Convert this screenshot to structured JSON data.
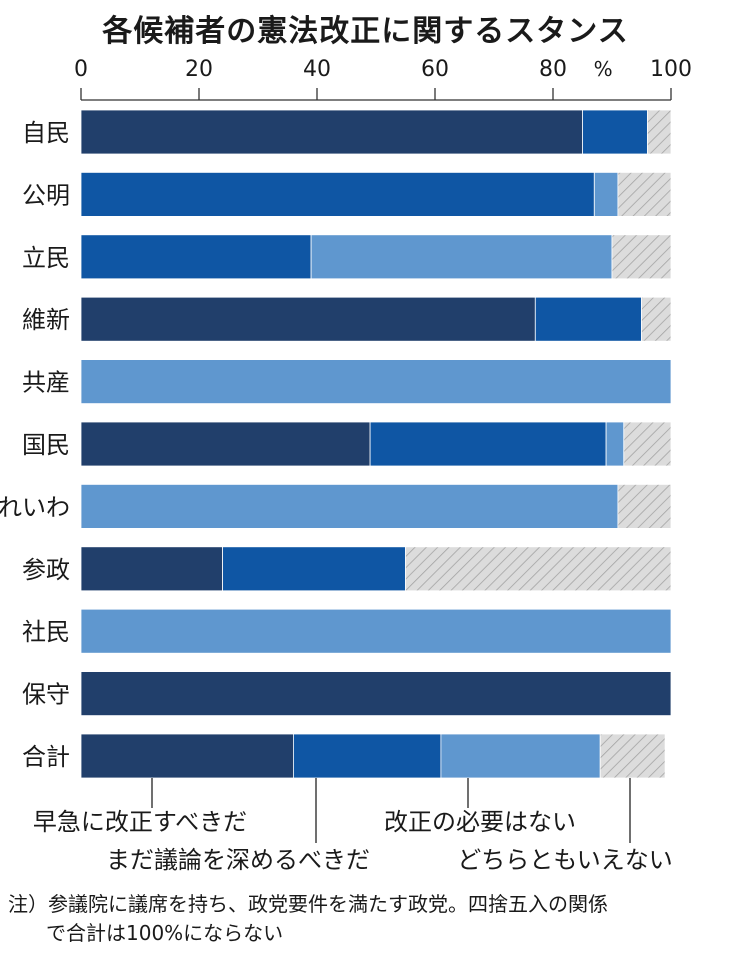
{
  "title": "各候補者の憲法改正に関するスタンス",
  "footnote": {
    "line1": "注）参議院に議席を持ち、政党要件を満たす政党。四捨五入の関係",
    "line2": "で合計は100%にならない"
  },
  "colors": {
    "immediate": "#213f6b",
    "deepen": "#0f56a4",
    "not_needed": "#5f97cf",
    "neither": "#d9d9d9",
    "neither_hatch": "#9a9a9a"
  },
  "chart_data": {
    "type": "bar",
    "orientation": "horizontal",
    "stacked": true,
    "title": "各候補者の憲法改正に関するスタンス",
    "unit_label": "%",
    "xlim": [
      0,
      100
    ],
    "xticks": [
      0,
      20,
      40,
      60,
      80,
      100
    ],
    "xtick_labels": [
      "0",
      "20",
      "40",
      "60",
      "80",
      "100"
    ],
    "grid": false,
    "categories": [
      "自民",
      "公明",
      "立民",
      "維新",
      "共産",
      "国民",
      "れいわ",
      "参政",
      "社民",
      "保守",
      "合計"
    ],
    "series": [
      {
        "name": "早急に改正すべきだ",
        "key": "immediate",
        "values": [
          85,
          0,
          0,
          77,
          0,
          49,
          0,
          24,
          0,
          100,
          36
        ]
      },
      {
        "name": "まだ議論を深めるべきだ",
        "key": "deepen",
        "values": [
          11,
          87,
          39,
          18,
          0,
          40,
          0,
          31,
          0,
          0,
          25
        ]
      },
      {
        "name": "改正の必要はない",
        "key": "not_needed",
        "values": [
          0,
          4,
          51,
          0,
          100,
          3,
          91,
          0,
          100,
          0,
          27
        ]
      },
      {
        "name": "どちらともいえない",
        "key": "neither",
        "values": [
          4,
          9,
          10,
          5,
          0,
          8,
          9,
          45,
          0,
          0,
          11
        ]
      }
    ],
    "legend": {
      "placement": "bottom",
      "row1": [
        "早急に改正すべきだ",
        "改正の必要はない"
      ],
      "row2": [
        "まだ議論を深めるべきだ",
        "どちらともいえない"
      ]
    }
  }
}
